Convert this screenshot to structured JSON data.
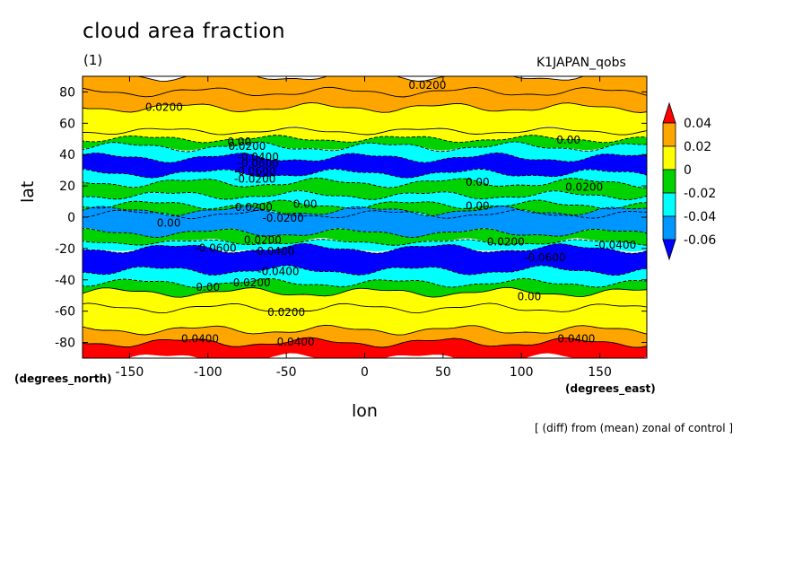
{
  "chart_data": {
    "type": "heatmap",
    "title": "cloud area fraction",
    "panel_label": "(1)",
    "run_name": "K1JAPAN_qobs",
    "xlabel": "lon",
    "x_unit": "(degrees_east)",
    "ylabel": "lat",
    "y_unit": "(degrees_north)",
    "note": "[ (diff) from (mean) zonal of control ]",
    "xlim": [
      -180,
      180
    ],
    "ylim": [
      -90,
      90
    ],
    "x_ticks": [
      "-150",
      "-100",
      "-50",
      "0",
      "50",
      "100",
      "150"
    ],
    "y_ticks": [
      "80",
      "60",
      "40",
      "20",
      "0",
      "-20",
      "-40",
      "-60",
      "-80"
    ],
    "legend": {
      "levels": [
        "0.04",
        "0.02",
        "0",
        "-0.02",
        "-0.04",
        "-0.06"
      ],
      "colors": [
        "#ff0000",
        "#ffa500",
        "#ffff00",
        "#00d200",
        "#00ffff",
        "#0096ff",
        "#0000ff"
      ]
    },
    "zonal_bands": [
      {
        "lat": [
          80,
          90
        ],
        "value": 0.035
      },
      {
        "lat": [
          70,
          80
        ],
        "value": 0.022
      },
      {
        "lat": [
          55,
          70
        ],
        "value": 0.012
      },
      {
        "lat": [
          50,
          55
        ],
        "value": 0.002
      },
      {
        "lat": [
          45,
          50
        ],
        "value": -0.015
      },
      {
        "lat": [
          38,
          45
        ],
        "value": -0.035
      },
      {
        "lat": [
          28,
          38
        ],
        "value": -0.065
      },
      {
        "lat": [
          22,
          28
        ],
        "value": -0.035
      },
      {
        "lat": [
          14,
          22
        ],
        "value": -0.015
      },
      {
        "lat": [
          8,
          14
        ],
        "value": -0.035
      },
      {
        "lat": [
          2,
          8
        ],
        "value": -0.015
      },
      {
        "lat": [
          -4,
          2
        ],
        "value": -0.035
      },
      {
        "lat": [
          -10,
          4
        ],
        "value": -0.045
      },
      {
        "lat": [
          -16,
          -10
        ],
        "value": -0.015
      },
      {
        "lat": [
          -20,
          -16
        ],
        "value": -0.035
      },
      {
        "lat": [
          -34,
          -20
        ],
        "value": -0.065
      },
      {
        "lat": [
          -42,
          -34
        ],
        "value": -0.035
      },
      {
        "lat": [
          -48,
          -42
        ],
        "value": -0.015
      },
      {
        "lat": [
          -58,
          -48
        ],
        "value": 0.005
      },
      {
        "lat": [
          -72,
          -58
        ],
        "value": 0.015
      },
      {
        "lat": [
          -80,
          -72
        ],
        "value": 0.025
      },
      {
        "lat": [
          -90,
          -80
        ],
        "value": 0.045
      }
    ],
    "contour_labels": [
      {
        "text": "0.0200",
        "lon": 40,
        "lat": 82
      },
      {
        "text": "0.0200",
        "lon": -128,
        "lat": 68
      },
      {
        "text": "0.00",
        "lon": -80,
        "lat": 46
      },
      {
        "text": "0.0200",
        "lon": -75,
        "lat": 43
      },
      {
        "text": "0.00",
        "lon": 130,
        "lat": 47
      },
      {
        "text": "-0.0400",
        "lon": -68,
        "lat": 36
      },
      {
        "text": "-0.0600",
        "lon": -68,
        "lat": 32
      },
      {
        "text": "-0.0600",
        "lon": -70,
        "lat": 27
      },
      {
        "text": "-0.0200",
        "lon": -70,
        "lat": 22
      },
      {
        "text": "0.0200",
        "lon": 140,
        "lat": 17
      },
      {
        "text": "0.00",
        "lon": 72,
        "lat": 20
      },
      {
        "text": "0.00",
        "lon": 72,
        "lat": 5
      },
      {
        "text": "-0.0200",
        "lon": -72,
        "lat": 4
      },
      {
        "text": "-0.0200",
        "lon": -52,
        "lat": -3
      },
      {
        "text": "0.00",
        "lon": -38,
        "lat": 6
      },
      {
        "text": "0.00",
        "lon": -125,
        "lat": -6
      },
      {
        "text": "0.0200",
        "lon": -65,
        "lat": -17
      },
      {
        "text": "0.0200",
        "lon": 90,
        "lat": -18
      },
      {
        "text": "-0.0600",
        "lon": -95,
        "lat": -22
      },
      {
        "text": "-0.0400",
        "lon": -58,
        "lat": -24
      },
      {
        "text": "-0.0600",
        "lon": 115,
        "lat": -28
      },
      {
        "text": "-0.0400",
        "lon": 160,
        "lat": -20
      },
      {
        "text": "-0.0400",
        "lon": -55,
        "lat": -37
      },
      {
        "text": "0.0200",
        "lon": -72,
        "lat": -44
      },
      {
        "text": "0.00",
        "lon": -100,
        "lat": -47
      },
      {
        "text": "0.00",
        "lon": 105,
        "lat": -53
      },
      {
        "text": "0.0200",
        "lon": -50,
        "lat": -63
      },
      {
        "text": "0.0400",
        "lon": -105,
        "lat": -80
      },
      {
        "text": "0.0400",
        "lon": -44,
        "lat": -82
      },
      {
        "text": "0.0400",
        "lon": 135,
        "lat": -80
      }
    ]
  }
}
